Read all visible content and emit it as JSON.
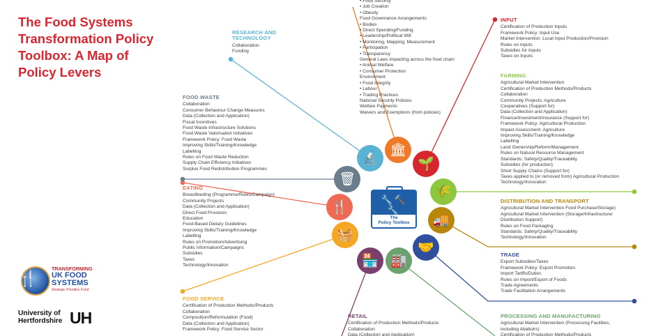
{
  "title": [
    "The Food Systems",
    "Transformation Policy",
    "Toolbox: A Map of",
    "Policy Levers"
  ],
  "center": {
    "label_line1": "The",
    "label_line2": "Policy Toolbox"
  },
  "logos": {
    "transforming": {
      "l1": "TRANSFORMING",
      "l2": "UK FOOD",
      "l3": "SYSTEMS",
      "l4": "Strategic Priorities Fund"
    },
    "university": {
      "line1": "University of",
      "line2": "Hertfordshire",
      "mark": "UH"
    }
  },
  "colors": {
    "red": "#d7262f",
    "orange": "#ee7a2a",
    "green": "#8dc63f",
    "gold": "#b8860b",
    "blue": "#2f4e9d",
    "teal": "#58b3d4",
    "grey": "#6b7c8c",
    "purple": "#7b3f6e",
    "sage": "#6ba36e"
  },
  "blocks": {
    "governance": {
      "heading": "",
      "items": [
        "• Food Security",
        "• Job Creation",
        "• Obesity",
        "Food Governance Arrangements:",
        "• Bodies",
        "• Direct Spending/Funding",
        "• Leadership/Political Will",
        "• Monitoring, Mapping, Measurement",
        "• Participation",
        "• Transparency",
        "General Laws impacting across the food chain:",
        "• Animal Welfare",
        "• Consumer Protection",
        "Environment",
        "• Food Integrity",
        "• Labour",
        "• Trading Practices",
        "National Security Policies",
        "Welfare Payments",
        "Waivers and Exemptions (from policies)"
      ]
    },
    "research": {
      "heading": "RESEARCH AND TECHNOLOGY",
      "heading_l1": "RESEARCH AND",
      "heading_l2": "TECHNOLOGY",
      "items": [
        "Collaboration",
        "Funding"
      ]
    },
    "food_waste": {
      "heading": "FOOD WASTE",
      "items": [
        "Collaboration",
        "Consumer Behaviour Change Measures",
        "Data (Collection and Application)",
        "Fiscal Incentives",
        "Food Waste Infrastructure Solutions",
        "Food Waste Valorisation Initiatives",
        "Framework Policy: Food Waste",
        "Improving Skills/Training/Knowledge",
        "Labelling",
        "Rules on Food Waste Reduction",
        "Supply Chain Efficiency Initiatives",
        "Surplus Food Redistribution Programmes"
      ]
    },
    "eating": {
      "heading": "EATING",
      "items": [
        "Breastfeeding (Programme/Rules/Campaign)",
        "Community Projects",
        "Data (Collection and Application)",
        "Direct Food Provision",
        "Education",
        "Food-Based Dietary Guidelines",
        "Improving Skills/Training/Knowledge",
        "Labelling",
        "Rules on Promotion/Advertising",
        "Public Information/Campaigns",
        "Subsidies",
        "Taxes",
        "Technology/Innovation"
      ]
    },
    "food_service": {
      "heading": "FOOD SERVICE",
      "items": [
        "Certification of Production Methods/Products",
        "Collaboration",
        "Composition/Reformulation (Food)",
        "Data (Collection and Application)",
        "Framework Policy: Food Service Sector"
      ]
    },
    "retail": {
      "heading": "RETAIL",
      "items": [
        "Certification of Production Methods/Products",
        "Collaboration",
        "Data (Collection and Application)"
      ]
    },
    "input": {
      "heading": "INPUT",
      "items": [
        "Certification of Production Inputs",
        "Framework Policy: Input Use",
        "Market Intervention: Local Input Production/Provision",
        "Rules on Inputs",
        "Subsidies for Inputs",
        "Taxes on Inputs"
      ]
    },
    "farming": {
      "heading": "FARMING",
      "items": [
        "Agricultural Market Intervention",
        "Certification of Production Methods/Products",
        "Collaboration",
        "Community Projects: Agriculture",
        "Cooperatives (Support for)",
        "Data (Collection and Application)",
        "Finance/Investment/Insurance (Support for)",
        "Framework Policy: Agricultural Production",
        "Impact Assessment: Agriculture",
        "Improving Skills/Training/Knowledge",
        "Labelling",
        "Land Ownership/Reform/Management",
        "Rules on Natural Resource Management",
        "Standards: Safety/Quality/Traceability",
        "Subsidies (for production)",
        "Short Supply Chains (Support for)",
        "Taxes applied to (or removed from) Agricultural Production",
        "Technology/Innovation"
      ]
    },
    "distribution": {
      "heading": "DISTRIBUTION AND TRANSPORT",
      "items": [
        "Agricultural Market Intervention Food Purchase/Storage)",
        "Agricultural Market Intervention (Storage/Infrastructure/",
        "    Distribution Support)",
        "Rules on Food Packaging",
        "Standards: Safety/Quality/Traceability",
        "Technology/Innovation"
      ]
    },
    "trade": {
      "heading": "TRADE",
      "items": [
        "Export Subsidies/Taxes",
        "Framework Policy: Export Promotion",
        "Import Tariffs/Duties",
        "Rules on Import/Export of Foods",
        "Trade Agreements",
        "Trade Facilitation Arrangements"
      ]
    },
    "processing": {
      "heading": "PROCESSING AND MANUFACTURING",
      "items": [
        "Agricultural Market Intervention (Processing Facilities,",
        "    including Abattoirs)",
        "Certification of Production Methods/Products"
      ]
    }
  },
  "icons": [
    {
      "name": "research-icon",
      "glyph": "🔬",
      "color": "#58b3d4"
    },
    {
      "name": "governance-icon",
      "glyph": "🏛",
      "color": "#ee7a2a"
    },
    {
      "name": "input-icon",
      "glyph": "🌱",
      "color": "#d7262f"
    },
    {
      "name": "farming-icon",
      "glyph": "🌾",
      "color": "#8dc63f"
    },
    {
      "name": "distribution-icon",
      "glyph": "🚚",
      "color": "#b8860b"
    },
    {
      "name": "trade-icon",
      "glyph": "🤝",
      "color": "#2f4e9d"
    },
    {
      "name": "processing-icon",
      "glyph": "🏭",
      "color": "#6ba36e"
    },
    {
      "name": "retail-icon",
      "glyph": "🏪",
      "color": "#7b3f6e"
    },
    {
      "name": "food-service-icon",
      "glyph": "🧺",
      "color": "#f5a623"
    },
    {
      "name": "eating-icon",
      "glyph": "🍴",
      "color": "#ee6a55"
    },
    {
      "name": "food-waste-icon",
      "glyph": "🗑",
      "color": "#6b7c8c"
    }
  ]
}
